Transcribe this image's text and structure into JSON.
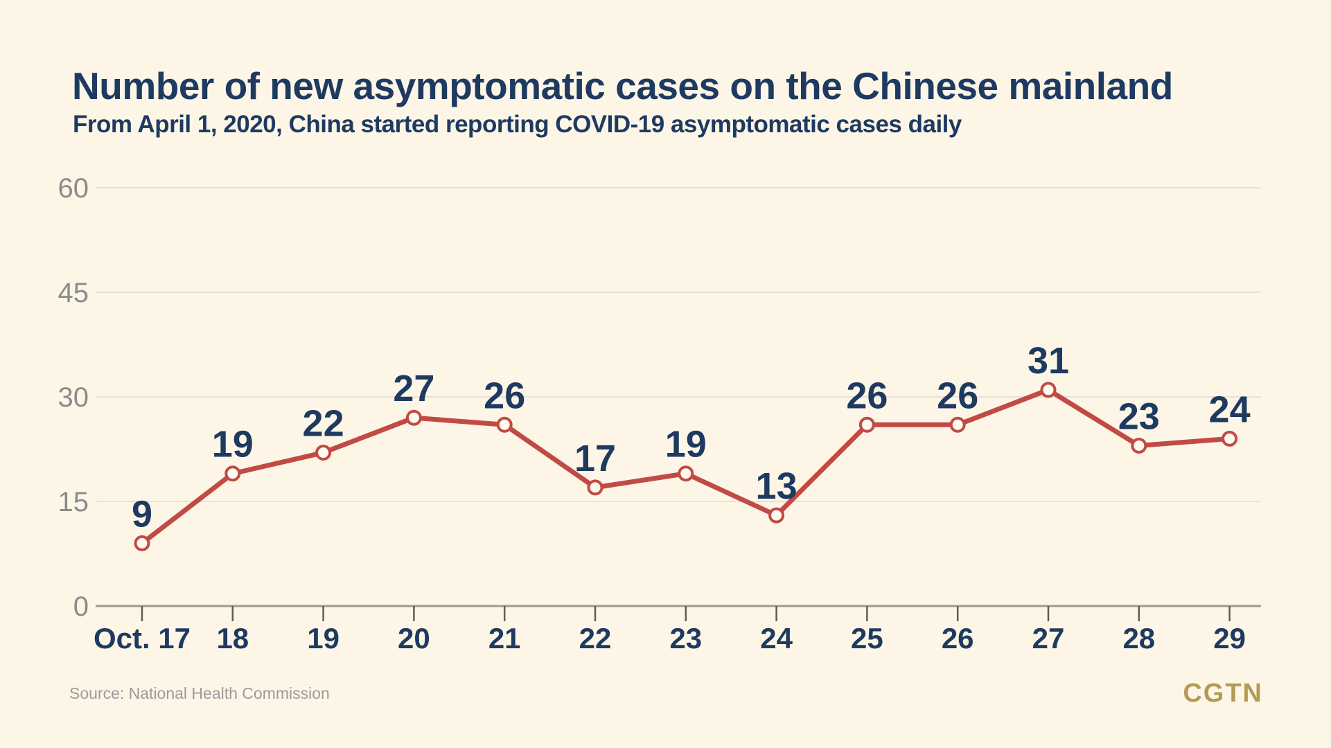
{
  "header": {
    "title": "Number of new asymptomatic cases on the Chinese mainland",
    "subtitle": "From April 1, 2020, China started reporting COVID-19 asymptomatic cases daily"
  },
  "chart_data": {
    "type": "line",
    "categories": [
      "Oct. 17",
      "18",
      "19",
      "20",
      "21",
      "22",
      "23",
      "24",
      "25",
      "26",
      "27",
      "28",
      "29"
    ],
    "values": [
      9,
      19,
      22,
      27,
      26,
      17,
      19,
      13,
      26,
      26,
      31,
      23,
      24
    ],
    "title": "Number of new asymptomatic cases on the Chinese mainland",
    "xlabel": "",
    "ylabel": "",
    "ylim": [
      0,
      60
    ],
    "yticks": [
      0,
      15,
      30,
      45,
      60
    ],
    "grid": true,
    "legend": "none",
    "colors": {
      "background": "#fdf6e7",
      "line": "#c14b44",
      "marker_fill": "#fefaf0",
      "data_label": "#1e3a61",
      "x_label": "#1e3a61",
      "y_label": "#8b8b8b",
      "gridline": "#e6e2d6",
      "axis_line": "#9d9991",
      "tick": "#5f5c55"
    }
  },
  "footer": {
    "source": "Source: National Health Commission",
    "logo": "CGTN",
    "logo_color": "#b49a55"
  }
}
